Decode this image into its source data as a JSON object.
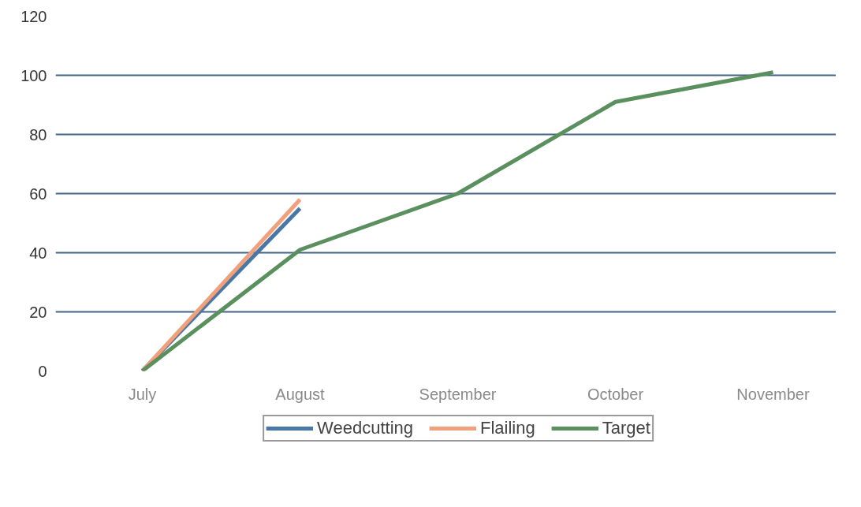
{
  "chart_data": {
    "type": "line",
    "categories": [
      "July",
      "August",
      "September",
      "October",
      "November"
    ],
    "series": [
      {
        "name": "Weedcutting",
        "color": "#4a78a6",
        "values": [
          0,
          55,
          null,
          null,
          null
        ]
      },
      {
        "name": "Flailing",
        "color": "#f0a07a",
        "values": [
          0,
          58,
          null,
          null,
          null
        ]
      },
      {
        "name": "Target",
        "color": "#5a8f5e",
        "values": [
          0,
          41,
          60,
          91,
          101
        ]
      }
    ],
    "ylim": [
      0,
      120
    ],
    "yticks": [
      0,
      20,
      40,
      60,
      80,
      100,
      120
    ],
    "grid": "y",
    "legend": "bottom",
    "marker": "none",
    "line_style": "solid"
  }
}
